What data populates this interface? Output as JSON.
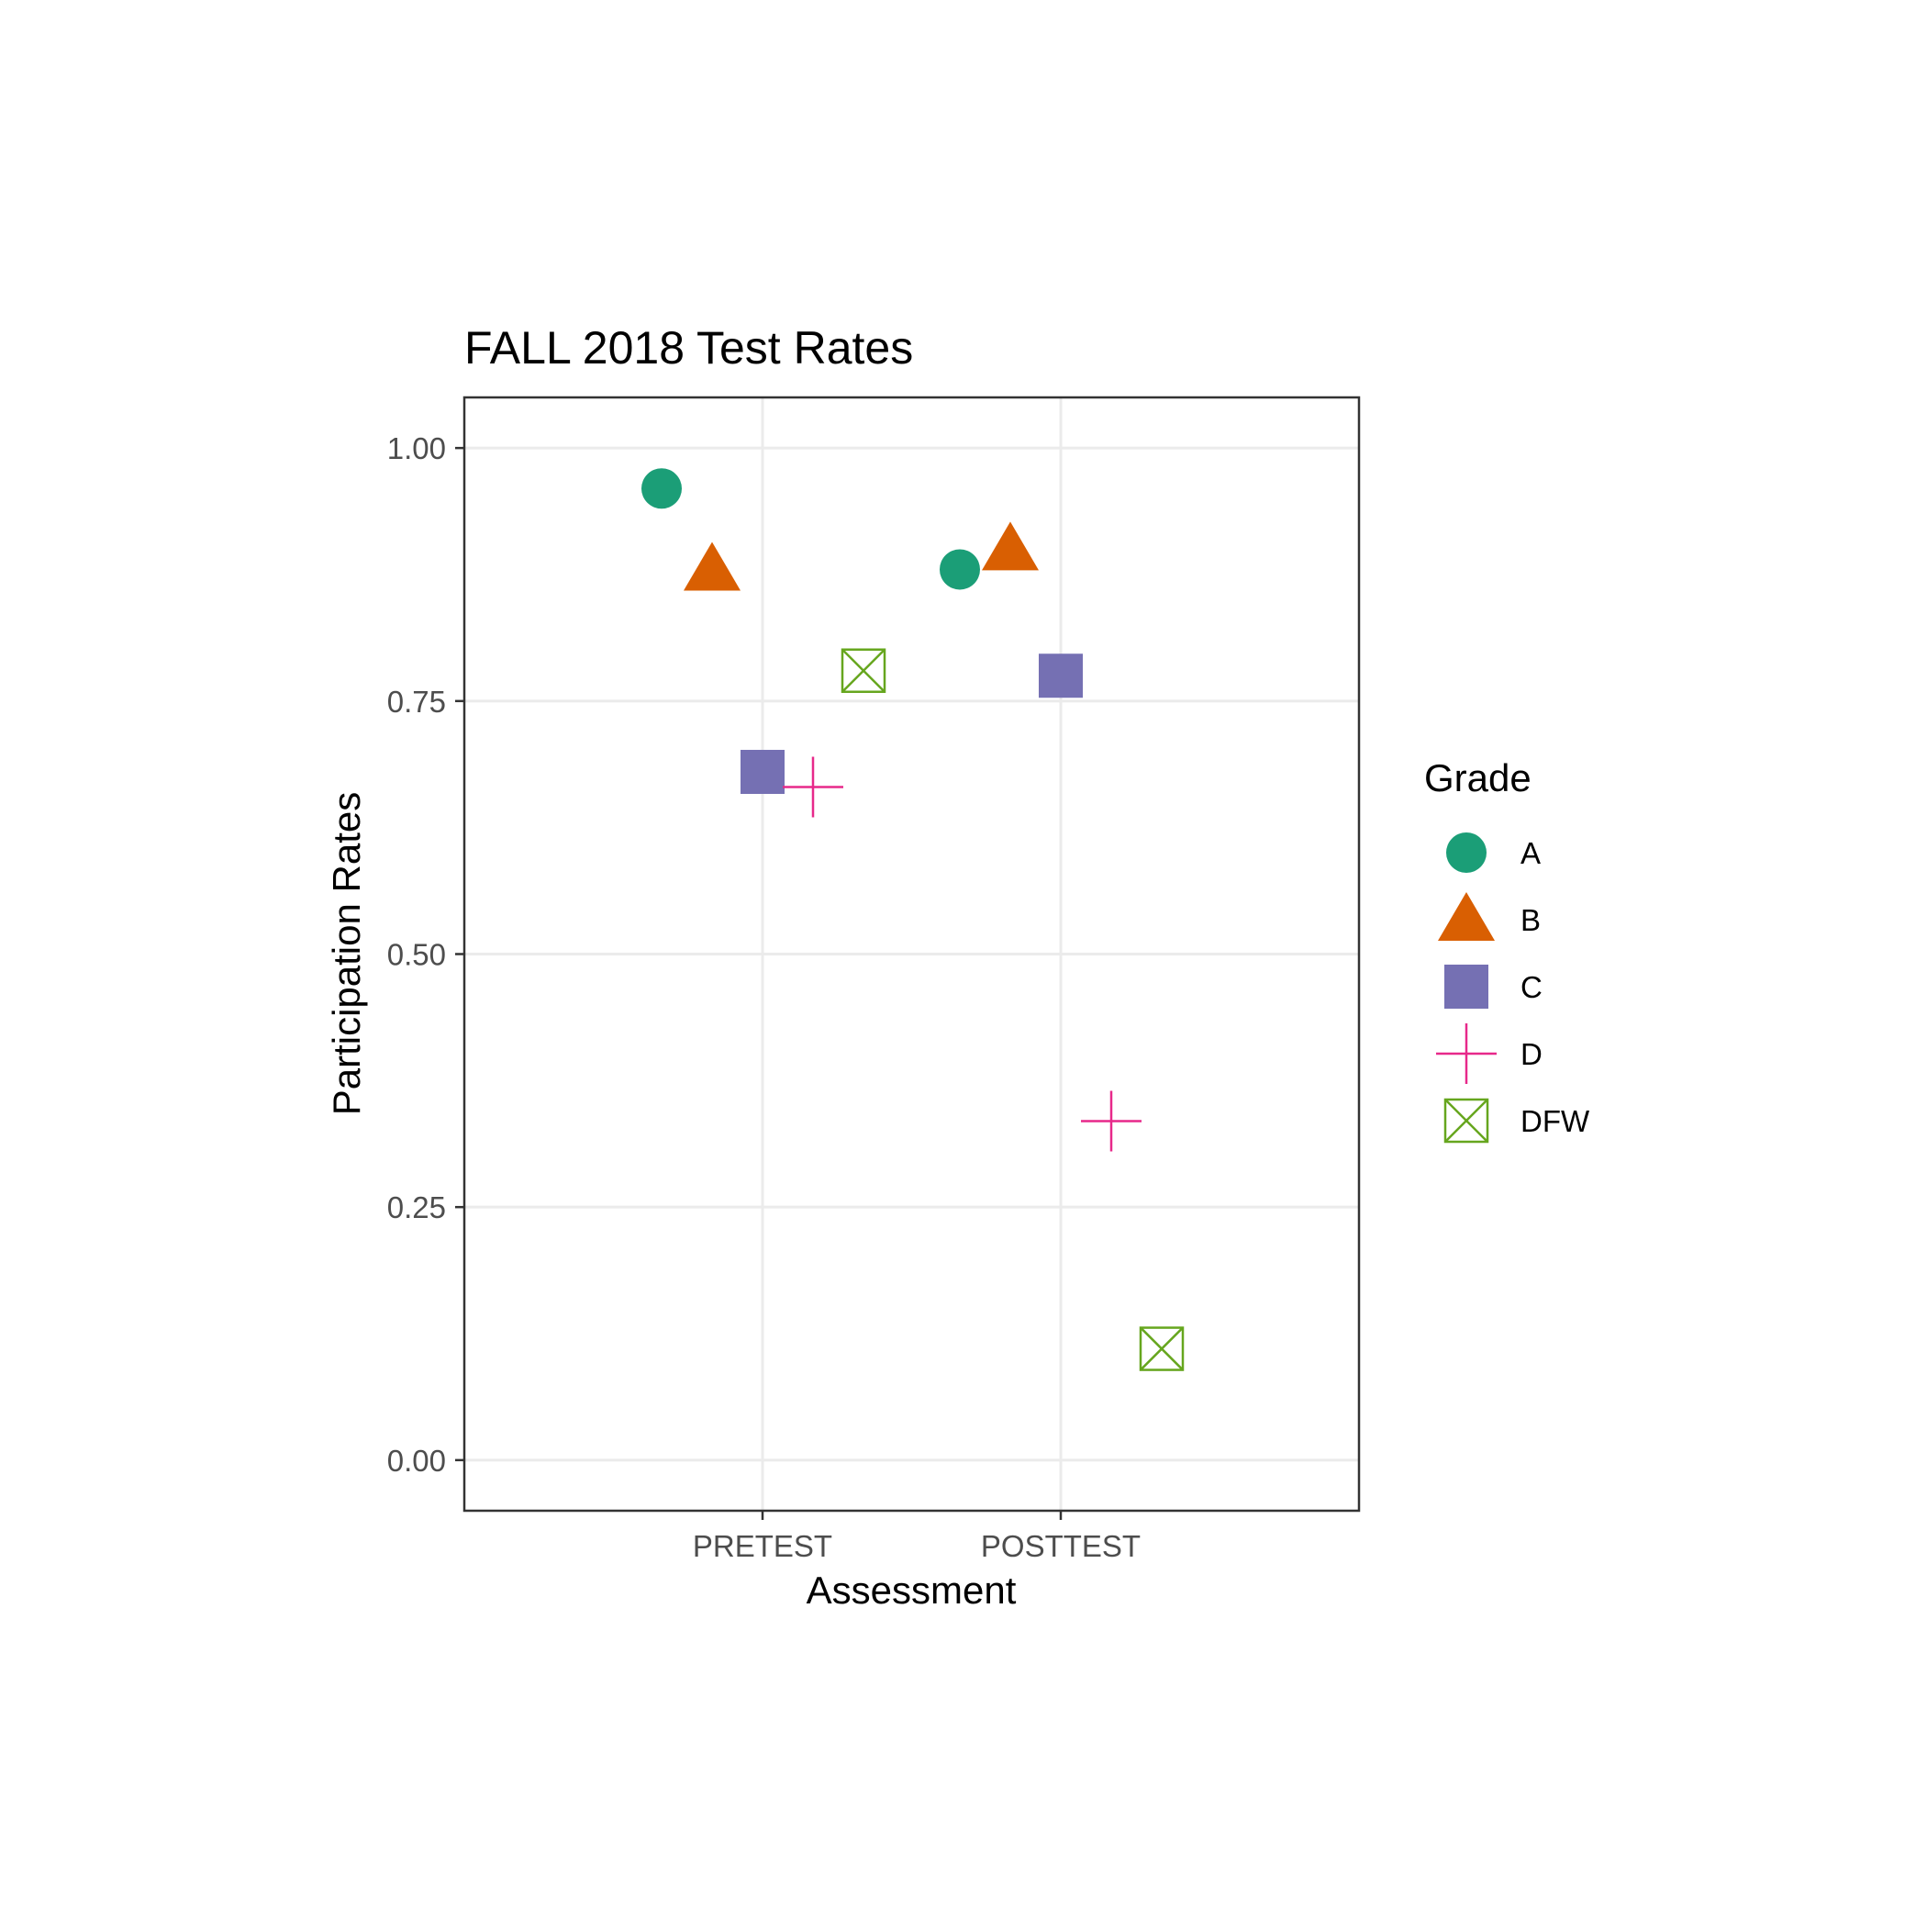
{
  "chart_data": {
    "type": "scatter",
    "title": "FALL 2018 Test Rates",
    "xlabel": "Assessment",
    "ylabel": "Participation Rates",
    "categories": [
      "PRETEST",
      "POSTTEST"
    ],
    "ylim": [
      -0.05,
      1.05
    ],
    "yticks": [
      0.0,
      0.25,
      0.5,
      0.75,
      1.0
    ],
    "ytick_labels": [
      "0.00",
      "0.25",
      "0.50",
      "0.75",
      "1.00"
    ],
    "grid": true,
    "points_dodged": true,
    "legend": {
      "title": "Grade",
      "position": "right"
    },
    "series": [
      {
        "name": "A",
        "shape": "circle",
        "color": "#1b9e77",
        "values": [
          0.96,
          0.88
        ]
      },
      {
        "name": "B",
        "shape": "triangle",
        "color": "#d95f02",
        "values": [
          0.88,
          0.9
        ]
      },
      {
        "name": "C",
        "shape": "square",
        "color": "#7570b3",
        "values": [
          0.68,
          0.775
        ]
      },
      {
        "name": "D",
        "shape": "plus",
        "color": "#e7298a",
        "values": [
          0.665,
          0.335
        ]
      },
      {
        "name": "DFW",
        "shape": "boxed-x",
        "color": "#66a61e",
        "values": [
          0.78,
          0.11
        ]
      }
    ]
  }
}
